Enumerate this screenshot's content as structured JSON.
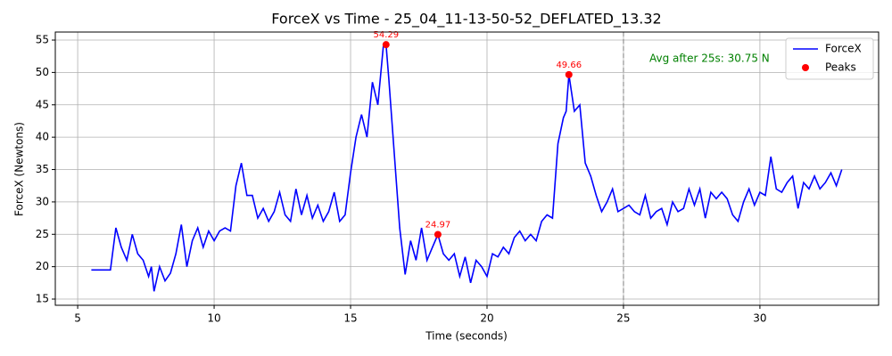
{
  "chart_data": {
    "type": "line",
    "title": "ForceX vs Time - 25_04_11-13-50-52_DEFLATED_13.32",
    "xlabel": "Time (seconds)",
    "ylabel": "ForceX (Newtons)",
    "x": [
      5.5,
      6.2,
      6.4,
      6.6,
      6.8,
      7.0,
      7.2,
      7.4,
      7.6,
      7.7,
      7.8,
      8.0,
      8.2,
      8.4,
      8.6,
      8.8,
      9.0,
      9.2,
      9.4,
      9.6,
      9.8,
      10.0,
      10.2,
      10.4,
      10.6,
      10.8,
      11.0,
      11.2,
      11.4,
      11.6,
      11.8,
      12.0,
      12.2,
      12.4,
      12.6,
      12.8,
      13.0,
      13.2,
      13.4,
      13.6,
      13.8,
      14.0,
      14.2,
      14.4,
      14.6,
      14.8,
      15.0,
      15.2,
      15.4,
      15.6,
      15.8,
      16.0,
      16.2,
      16.3,
      16.4,
      16.6,
      16.8,
      17.0,
      17.2,
      17.4,
      17.6,
      17.8,
      18.0,
      18.2,
      18.4,
      18.6,
      18.8,
      19.0,
      19.2,
      19.4,
      19.6,
      19.8,
      20.0,
      20.2,
      20.4,
      20.6,
      20.8,
      21.0,
      21.2,
      21.4,
      21.6,
      21.8,
      22.0,
      22.2,
      22.4,
      22.6,
      22.8,
      22.9,
      23.0,
      23.2,
      23.4,
      23.6,
      23.8,
      24.0,
      24.2,
      24.4,
      24.6,
      24.8,
      25.0,
      25.2,
      25.4,
      25.6,
      25.8,
      26.0,
      26.2,
      26.4,
      26.6,
      26.8,
      27.0,
      27.2,
      27.4,
      27.6,
      27.8,
      28.0,
      28.2,
      28.4,
      28.6,
      28.8,
      29.0,
      29.2,
      29.4,
      29.6,
      29.8,
      30.0,
      30.2,
      30.4,
      30.6,
      30.8,
      31.0,
      31.2,
      31.4,
      31.6,
      31.8,
      32.0,
      32.2,
      32.4,
      32.6,
      32.8,
      33.0
    ],
    "series": [
      {
        "name": "ForceX",
        "color": "#0000ff",
        "values": [
          19.5,
          19.5,
          26,
          23,
          21,
          25,
          22,
          21,
          18.5,
          20,
          16.2,
          20,
          17.8,
          19,
          22,
          26.5,
          20,
          24,
          26,
          23,
          25.5,
          24,
          25.5,
          26,
          25.5,
          32.5,
          36,
          31,
          31,
          27.5,
          29,
          27,
          28.5,
          31.5,
          28,
          27,
          32,
          28,
          31,
          27.5,
          29.5,
          27,
          28.5,
          31.5,
          27,
          28,
          34.5,
          40,
          43.5,
          40,
          48.5,
          45,
          54,
          54.29,
          49,
          37.5,
          26,
          18.8,
          24,
          21,
          26,
          21,
          23,
          24.97,
          22,
          21,
          22,
          18.5,
          21.5,
          17.5,
          21,
          20,
          18.5,
          22,
          21.5,
          23,
          22,
          24.5,
          25.5,
          24,
          25,
          24,
          27,
          28,
          27.5,
          39,
          43,
          44,
          49.66,
          44,
          45,
          36,
          34,
          31,
          28.5,
          30,
          32,
          28.5,
          29,
          29.5,
          28.5,
          28,
          31,
          27.5,
          28.5,
          29,
          26.5,
          30,
          28.5,
          29,
          32,
          29.5,
          32,
          27.5,
          31.5,
          30.5,
          31.5,
          30.5,
          28,
          27,
          30,
          32,
          29.5,
          31.5,
          31,
          37,
          32,
          31.5,
          33,
          34,
          29,
          33,
          32,
          34,
          32,
          33,
          34.5,
          32.5,
          35
        ]
      }
    ],
    "peaks": {
      "name": "Peaks",
      "color": "#ff0000",
      "x": [
        16.3,
        18.2,
        23.0
      ],
      "values": [
        54.29,
        24.97,
        49.66
      ]
    },
    "vline": 25,
    "annotation": "Avg after 25s: 30.75 N",
    "xlim": [
      4.18,
      34.35
    ],
    "ylim": [
      14.04,
      56.24
    ],
    "xticks": [
      5,
      10,
      15,
      20,
      25,
      30
    ],
    "yticks": [
      15,
      20,
      25,
      30,
      35,
      40,
      45,
      50,
      55
    ],
    "grid": true,
    "legend": "upper right"
  }
}
